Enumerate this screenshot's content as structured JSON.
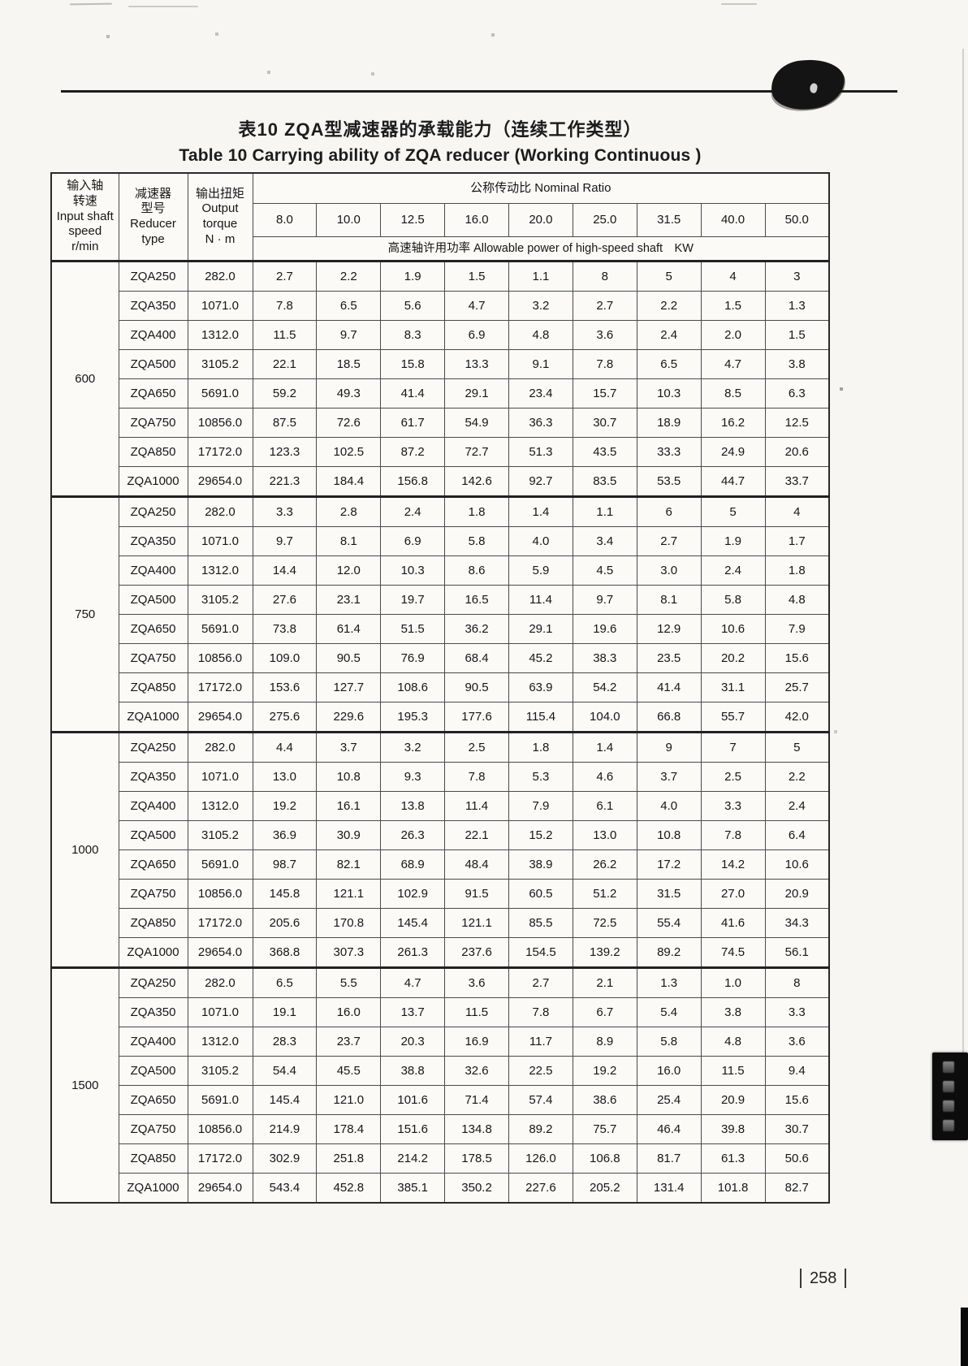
{
  "page": {
    "titles": {
      "chinese": "表10  ZQA型减速器的承载能力（连续工作类型）",
      "english": "Table 10 Carrying ability of ZQA reducer (Working Continuous )"
    },
    "footer": {
      "page_number": "258"
    }
  },
  "table": {
    "headers": {
      "input_speed": "输入轴\n转速\nInput shaft\nspeed\nr/min",
      "reducer_type": "减速器\n型号\nReducer\ntype",
      "output_torque": "输出扭矩\nOutput\ntorque\nN · m",
      "nominal_ratio": "公称传动比 Nominal Ratio",
      "allowable_power": "高速轴许用功率  Allowable power of high-speed shaft　KW"
    },
    "ratios": [
      "8.0",
      "10.0",
      "12.5",
      "16.0",
      "20.0",
      "25.0",
      "31.5",
      "40.0",
      "50.0"
    ],
    "groups": [
      {
        "speed": "600",
        "rows": [
          {
            "type": "ZQA250",
            "torque": "282.0",
            "powers": [
              "2.7",
              "2.2",
              "1.9",
              "1.5",
              "1.1",
              "8",
              "5",
              "4",
              "3"
            ]
          },
          {
            "type": "ZQA350",
            "torque": "1071.0",
            "powers": [
              "7.8",
              "6.5",
              "5.6",
              "4.7",
              "3.2",
              "2.7",
              "2.2",
              "1.5",
              "1.3"
            ]
          },
          {
            "type": "ZQA400",
            "torque": "1312.0",
            "powers": [
              "11.5",
              "9.7",
              "8.3",
              "6.9",
              "4.8",
              "3.6",
              "2.4",
              "2.0",
              "1.5"
            ]
          },
          {
            "type": "ZQA500",
            "torque": "3105.2",
            "powers": [
              "22.1",
              "18.5",
              "15.8",
              "13.3",
              "9.1",
              "7.8",
              "6.5",
              "4.7",
              "3.8"
            ]
          },
          {
            "type": "ZQA650",
            "torque": "5691.0",
            "powers": [
              "59.2",
              "49.3",
              "41.4",
              "29.1",
              "23.4",
              "15.7",
              "10.3",
              "8.5",
              "6.3"
            ]
          },
          {
            "type": "ZQA750",
            "torque": "10856.0",
            "powers": [
              "87.5",
              "72.6",
              "61.7",
              "54.9",
              "36.3",
              "30.7",
              "18.9",
              "16.2",
              "12.5"
            ]
          },
          {
            "type": "ZQA850",
            "torque": "17172.0",
            "powers": [
              "123.3",
              "102.5",
              "87.2",
              "72.7",
              "51.3",
              "43.5",
              "33.3",
              "24.9",
              "20.6"
            ]
          },
          {
            "type": "ZQA1000",
            "torque": "29654.0",
            "powers": [
              "221.3",
              "184.4",
              "156.8",
              "142.6",
              "92.7",
              "83.5",
              "53.5",
              "44.7",
              "33.7"
            ]
          }
        ]
      },
      {
        "speed": "750",
        "rows": [
          {
            "type": "ZQA250",
            "torque": "282.0",
            "powers": [
              "3.3",
              "2.8",
              "2.4",
              "1.8",
              "1.4",
              "1.1",
              "6",
              "5",
              "4"
            ]
          },
          {
            "type": "ZQA350",
            "torque": "1071.0",
            "powers": [
              "9.7",
              "8.1",
              "6.9",
              "5.8",
              "4.0",
              "3.4",
              "2.7",
              "1.9",
              "1.7"
            ]
          },
          {
            "type": "ZQA400",
            "torque": "1312.0",
            "powers": [
              "14.4",
              "12.0",
              "10.3",
              "8.6",
              "5.9",
              "4.5",
              "3.0",
              "2.4",
              "1.8"
            ]
          },
          {
            "type": "ZQA500",
            "torque": "3105.2",
            "powers": [
              "27.6",
              "23.1",
              "19.7",
              "16.5",
              "11.4",
              "9.7",
              "8.1",
              "5.8",
              "4.8"
            ]
          },
          {
            "type": "ZQA650",
            "torque": "5691.0",
            "powers": [
              "73.8",
              "61.4",
              "51.5",
              "36.2",
              "29.1",
              "19.6",
              "12.9",
              "10.6",
              "7.9"
            ]
          },
          {
            "type": "ZQA750",
            "torque": "10856.0",
            "powers": [
              "109.0",
              "90.5",
              "76.9",
              "68.4",
              "45.2",
              "38.3",
              "23.5",
              "20.2",
              "15.6"
            ]
          },
          {
            "type": "ZQA850",
            "torque": "17172.0",
            "powers": [
              "153.6",
              "127.7",
              "108.6",
              "90.5",
              "63.9",
              "54.2",
              "41.4",
              "31.1",
              "25.7"
            ]
          },
          {
            "type": "ZQA1000",
            "torque": "29654.0",
            "powers": [
              "275.6",
              "229.6",
              "195.3",
              "177.6",
              "115.4",
              "104.0",
              "66.8",
              "55.7",
              "42.0"
            ]
          }
        ]
      },
      {
        "speed": "1000",
        "rows": [
          {
            "type": "ZQA250",
            "torque": "282.0",
            "powers": [
              "4.4",
              "3.7",
              "3.2",
              "2.5",
              "1.8",
              "1.4",
              "9",
              "7",
              "5"
            ]
          },
          {
            "type": "ZQA350",
            "torque": "1071.0",
            "powers": [
              "13.0",
              "10.8",
              "9.3",
              "7.8",
              "5.3",
              "4.6",
              "3.7",
              "2.5",
              "2.2"
            ]
          },
          {
            "type": "ZQA400",
            "torque": "1312.0",
            "powers": [
              "19.2",
              "16.1",
              "13.8",
              "11.4",
              "7.9",
              "6.1",
              "4.0",
              "3.3",
              "2.4"
            ]
          },
          {
            "type": "ZQA500",
            "torque": "3105.2",
            "powers": [
              "36.9",
              "30.9",
              "26.3",
              "22.1",
              "15.2",
              "13.0",
              "10.8",
              "7.8",
              "6.4"
            ]
          },
          {
            "type": "ZQA650",
            "torque": "5691.0",
            "powers": [
              "98.7",
              "82.1",
              "68.9",
              "48.4",
              "38.9",
              "26.2",
              "17.2",
              "14.2",
              "10.6"
            ]
          },
          {
            "type": "ZQA750",
            "torque": "10856.0",
            "powers": [
              "145.8",
              "121.1",
              "102.9",
              "91.5",
              "60.5",
              "51.2",
              "31.5",
              "27.0",
              "20.9"
            ]
          },
          {
            "type": "ZQA850",
            "torque": "17172.0",
            "powers": [
              "205.6",
              "170.8",
              "145.4",
              "121.1",
              "85.5",
              "72.5",
              "55.4",
              "41.6",
              "34.3"
            ]
          },
          {
            "type": "ZQA1000",
            "torque": "29654.0",
            "powers": [
              "368.8",
              "307.3",
              "261.3",
              "237.6",
              "154.5",
              "139.2",
              "89.2",
              "74.5",
              "56.1"
            ]
          }
        ]
      },
      {
        "speed": "1500",
        "rows": [
          {
            "type": "ZQA250",
            "torque": "282.0",
            "powers": [
              "6.5",
              "5.5",
              "4.7",
              "3.6",
              "2.7",
              "2.1",
              "1.3",
              "1.0",
              "8"
            ]
          },
          {
            "type": "ZQA350",
            "torque": "1071.0",
            "powers": [
              "19.1",
              "16.0",
              "13.7",
              "11.5",
              "7.8",
              "6.7",
              "5.4",
              "3.8",
              "3.3"
            ]
          },
          {
            "type": "ZQA400",
            "torque": "1312.0",
            "powers": [
              "28.3",
              "23.7",
              "20.3",
              "16.9",
              "11.7",
              "8.9",
              "5.8",
              "4.8",
              "3.6"
            ]
          },
          {
            "type": "ZQA500",
            "torque": "3105.2",
            "powers": [
              "54.4",
              "45.5",
              "38.8",
              "32.6",
              "22.5",
              "19.2",
              "16.0",
              "11.5",
              "9.4"
            ]
          },
          {
            "type": "ZQA650",
            "torque": "5691.0",
            "powers": [
              "145.4",
              "121.0",
              "101.6",
              "71.4",
              "57.4",
              "38.6",
              "25.4",
              "20.9",
              "15.6"
            ]
          },
          {
            "type": "ZQA750",
            "torque": "10856.0",
            "powers": [
              "214.9",
              "178.4",
              "151.6",
              "134.8",
              "89.2",
              "75.7",
              "46.4",
              "39.8",
              "30.7"
            ]
          },
          {
            "type": "ZQA850",
            "torque": "17172.0",
            "powers": [
              "302.9",
              "251.8",
              "214.2",
              "178.5",
              "126.0",
              "106.8",
              "81.7",
              "61.3",
              "50.6"
            ]
          },
          {
            "type": "ZQA1000",
            "torque": "29654.0",
            "powers": [
              "543.4",
              "452.8",
              "385.1",
              "350.2",
              "227.6",
              "205.2",
              "131.4",
              "101.8",
              "82.7"
            ]
          }
        ]
      }
    ]
  }
}
